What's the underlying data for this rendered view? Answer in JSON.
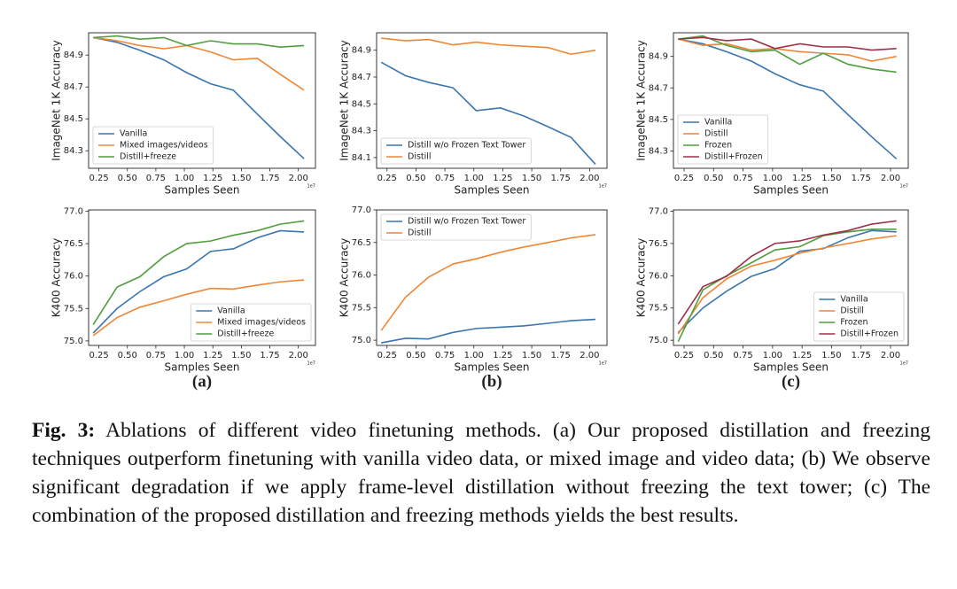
{
  "chart_data": [
    {
      "type": "line",
      "ylabel": "ImageNet 1K Accuracy",
      "xlabel": "Samples Seen",
      "x_offset_label": "1e7",
      "legend": "lower left",
      "x": [
        0.2,
        0.41,
        0.61,
        0.82,
        1.02,
        1.23,
        1.43,
        1.64,
        1.84,
        2.05
      ],
      "xlim": [
        0.16,
        2.15
      ],
      "xticks": [
        0.25,
        {
          "value": 0.5,
          "label": "0.50"
        },
        0.75,
        {
          "value": 1,
          "label": "1.00"
        },
        1.25,
        {
          "value": 1.5,
          "label": "1.50"
        },
        1.75,
        {
          "value": 2,
          "label": "2.00"
        }
      ],
      "ylim": [
        84.19,
        85.04
      ],
      "yticks": [
        84.3,
        84.5,
        84.7,
        84.9
      ],
      "series": [
        {
          "name": "Vanilla",
          "color": "#3b75af",
          "values": [
            85.01,
            84.98,
            84.93,
            84.87,
            84.79,
            84.72,
            84.68,
            84.53,
            84.39,
            84.25
          ]
        },
        {
          "name": "Mixed images/videos",
          "color": "#ef8636",
          "values": [
            85.01,
            84.99,
            84.96,
            84.94,
            84.96,
            84.92,
            84.87,
            84.88,
            84.78,
            84.68
          ]
        },
        {
          "name": "Distill+freeze",
          "color": "#519e3e",
          "values": [
            85.01,
            85.02,
            85.0,
            85.01,
            84.96,
            84.99,
            84.97,
            84.97,
            84.95,
            84.96
          ]
        }
      ]
    },
    {
      "type": "line",
      "ylabel": "ImageNet 1K Accuracy",
      "xlabel": "Samples Seen",
      "x_offset_label": "1e7",
      "legend": "lower left",
      "x": [
        0.2,
        0.41,
        0.61,
        0.82,
        1.02,
        1.23,
        1.43,
        1.64,
        1.84,
        2.05
      ],
      "xlim": [
        0.16,
        2.15
      ],
      "xticks": [
        0.25,
        {
          "value": 0.5,
          "label": "0.50"
        },
        0.75,
        {
          "value": 1,
          "label": "1.00"
        },
        1.25,
        {
          "value": 1.5,
          "label": "1.50"
        },
        1.75,
        {
          "value": 2,
          "label": "2.00"
        }
      ],
      "ylim": [
        84.02,
        85.03
      ],
      "yticks": [
        84.1,
        84.3,
        84.5,
        84.7,
        84.9
      ],
      "series": [
        {
          "name": "Distill w/o Frozen Text Tower",
          "color": "#3b75af",
          "values": [
            84.81,
            84.71,
            84.66,
            84.62,
            84.45,
            84.47,
            84.41,
            84.33,
            84.25,
            84.05
          ]
        },
        {
          "name": "Distill",
          "color": "#ef8636",
          "values": [
            84.99,
            84.97,
            84.98,
            84.94,
            84.96,
            84.94,
            84.93,
            84.92,
            84.87,
            84.9
          ]
        }
      ]
    },
    {
      "type": "line",
      "ylabel": "ImageNet 1K Accuracy",
      "xlabel": "Samples Seen",
      "x_offset_label": "1e7",
      "legend": "lower left",
      "x": [
        0.2,
        0.41,
        0.61,
        0.82,
        1.02,
        1.23,
        1.43,
        1.64,
        1.84,
        2.05
      ],
      "xlim": [
        0.16,
        2.15
      ],
      "xticks": [
        0.25,
        {
          "value": 0.5,
          "label": "0.50"
        },
        0.75,
        {
          "value": 1,
          "label": "1.00"
        },
        1.25,
        {
          "value": 1.5,
          "label": "1.50"
        },
        1.75,
        {
          "value": 2,
          "label": "2.00"
        }
      ],
      "ylim": [
        84.19,
        85.05
      ],
      "yticks": [
        84.3,
        84.5,
        84.7,
        84.9
      ],
      "series": [
        {
          "name": "Vanilla",
          "color": "#3b75af",
          "values": [
            85.01,
            84.98,
            84.93,
            84.87,
            84.79,
            84.72,
            84.68,
            84.53,
            84.39,
            84.25
          ]
        },
        {
          "name": "Distill",
          "color": "#ef8636",
          "values": [
            85.01,
            84.97,
            84.98,
            84.94,
            84.95,
            84.93,
            84.92,
            84.91,
            84.87,
            84.9
          ]
        },
        {
          "name": "Frozen",
          "color": "#519e3e",
          "values": [
            85.01,
            85.03,
            84.97,
            84.93,
            84.94,
            84.85,
            84.92,
            84.85,
            84.82,
            84.8
          ]
        },
        {
          "name": "Distill+Frozen",
          "color": "#a03048",
          "values": [
            85.01,
            85.02,
            85.0,
            85.01,
            84.95,
            84.98,
            84.96,
            84.96,
            84.94,
            84.95
          ]
        }
      ]
    },
    {
      "type": "line",
      "ylabel": "K400 Accuracy",
      "xlabel": "Samples Seen",
      "x_offset_label": "1e7",
      "legend": "lower right",
      "x": [
        0.2,
        0.41,
        0.61,
        0.82,
        1.02,
        1.23,
        1.43,
        1.64,
        1.84,
        2.05
      ],
      "xlim": [
        0.16,
        2.15
      ],
      "xticks": [
        0.25,
        {
          "value": 0.5,
          "label": "0.50"
        },
        0.75,
        {
          "value": 1,
          "label": "1.00"
        },
        1.25,
        {
          "value": 1.5,
          "label": "1.50"
        },
        1.75,
        {
          "value": 2,
          "label": "2.00"
        }
      ],
      "ylim": [
        74.93,
        77.02
      ],
      "yticks": [
        {
          "value": 75,
          "label": "75.0"
        },
        75.5,
        {
          "value": 76,
          "label": "76.0"
        },
        76.5,
        {
          "value": 77,
          "label": "77.0"
        }
      ],
      "series": [
        {
          "name": "Vanilla",
          "color": "#3b75af",
          "values": [
            75.12,
            75.5,
            75.76,
            75.99,
            76.11,
            76.38,
            76.42,
            76.59,
            76.7,
            76.68
          ]
        },
        {
          "name": "Mixed images/videos",
          "color": "#ef8636",
          "values": [
            75.08,
            75.36,
            75.52,
            75.62,
            75.72,
            75.81,
            75.8,
            75.86,
            75.91,
            75.94
          ]
        },
        {
          "name": "Distill+freeze",
          "color": "#519e3e",
          "values": [
            75.25,
            75.83,
            75.99,
            76.3,
            76.5,
            76.54,
            76.63,
            76.7,
            76.8,
            76.85
          ]
        }
      ]
    },
    {
      "type": "line",
      "ylabel": "K400 Accuracy",
      "xlabel": "Samples Seen",
      "x_offset_label": "1e7",
      "legend": "upper left",
      "x": [
        0.2,
        0.41,
        0.61,
        0.82,
        1.02,
        1.23,
        1.43,
        1.64,
        1.84,
        2.05
      ],
      "xlim": [
        0.16,
        2.15
      ],
      "xticks": [
        0.25,
        {
          "value": 0.5,
          "label": "0.50"
        },
        0.75,
        {
          "value": 1,
          "label": "1.00"
        },
        1.25,
        {
          "value": 1.5,
          "label": "1.50"
        },
        1.75,
        {
          "value": 2,
          "label": "2.00"
        }
      ],
      "ylim": [
        74.92,
        77.0
      ],
      "yticks": [
        {
          "value": 75,
          "label": "75.0"
        },
        75.5,
        {
          "value": 76,
          "label": "76.0"
        },
        76.5,
        {
          "value": 77,
          "label": "77.0"
        }
      ],
      "series": [
        {
          "name": "Distill w/o Frozen Text Tower",
          "color": "#3b75af",
          "values": [
            74.96,
            75.03,
            75.02,
            75.12,
            75.18,
            75.2,
            75.22,
            75.26,
            75.3,
            75.32
          ]
        },
        {
          "name": "Distill",
          "color": "#ef8636",
          "values": [
            75.15,
            75.66,
            75.97,
            76.17,
            76.25,
            76.35,
            76.43,
            76.5,
            76.57,
            76.62
          ]
        }
      ]
    },
    {
      "type": "line",
      "ylabel": "K400 Accuracy",
      "xlabel": "Samples Seen",
      "x_offset_label": "1e7",
      "legend": "lower right",
      "x": [
        0.2,
        0.41,
        0.61,
        0.82,
        1.02,
        1.23,
        1.43,
        1.64,
        1.84,
        2.05
      ],
      "xlim": [
        0.16,
        2.15
      ],
      "xticks": [
        0.25,
        {
          "value": 0.5,
          "label": "0.50"
        },
        0.75,
        {
          "value": 1,
          "label": "1.00"
        },
        1.25,
        {
          "value": 1.5,
          "label": "1.50"
        },
        1.75,
        {
          "value": 2,
          "label": "2.00"
        }
      ],
      "ylim": [
        74.92,
        77.02
      ],
      "yticks": [
        {
          "value": 75,
          "label": "75.0"
        },
        75.5,
        {
          "value": 76,
          "label": "76.0"
        },
        76.5,
        {
          "value": 77,
          "label": "77.0"
        }
      ],
      "series": [
        {
          "name": "Vanilla",
          "color": "#3b75af",
          "values": [
            75.12,
            75.5,
            75.76,
            75.99,
            76.11,
            76.38,
            76.42,
            76.59,
            76.7,
            76.68
          ]
        },
        {
          "name": "Distill",
          "color": "#ef8636",
          "values": [
            75.1,
            75.66,
            75.95,
            76.15,
            76.24,
            76.35,
            76.43,
            76.5,
            76.57,
            76.62
          ]
        },
        {
          "name": "Frozen",
          "color": "#519e3e",
          "values": [
            74.98,
            75.78,
            76.0,
            76.2,
            76.4,
            76.45,
            76.62,
            76.68,
            76.72,
            76.72
          ]
        },
        {
          "name": "Distill+Frozen",
          "color": "#a03048",
          "values": [
            75.25,
            75.83,
            75.99,
            76.3,
            76.5,
            76.54,
            76.63,
            76.7,
            76.8,
            76.85
          ]
        }
      ]
    }
  ],
  "panel_labels": [
    "(a)",
    "(b)",
    "(c)"
  ],
  "caption": {
    "label": "Fig. 3:",
    "text": "Ablations of different video finetuning methods. (a) Our proposed distillation and freezing techniques outperform finetuning with vanilla video data, or mixed image and video data; (b) We observe significant degradation if we apply frame-level distillation without freezing the text tower; (c) The combination of the proposed distillation and freezing methods yields the best results."
  }
}
